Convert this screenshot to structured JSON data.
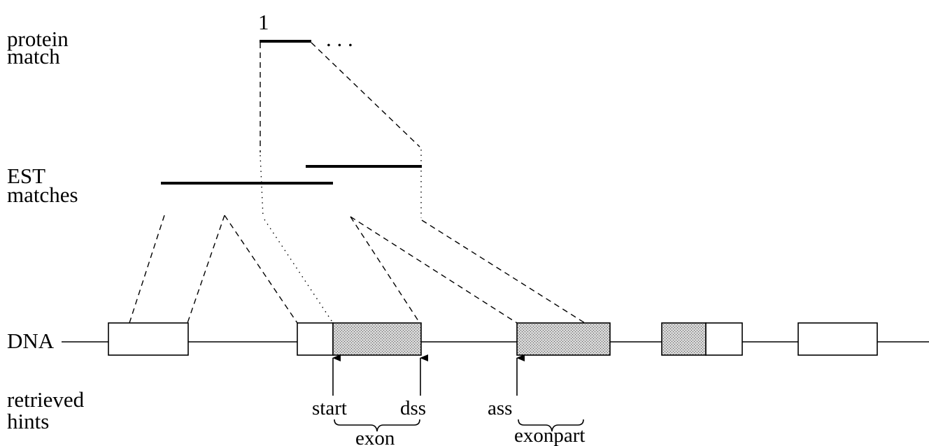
{
  "labels": {
    "protein_line1": "protein",
    "protein_line2": "match",
    "est_line1": "EST",
    "est_line2": "matches",
    "dna": "DNA",
    "hints_line1": "retrieved",
    "hints_line2": "hints",
    "protein_start_marker": "1",
    "protein_ellipsis": ". . ."
  },
  "hints": {
    "start": "start",
    "dss": "dss",
    "ass": "ass",
    "exon": "exon",
    "exonpart": "exonpart"
  }
}
